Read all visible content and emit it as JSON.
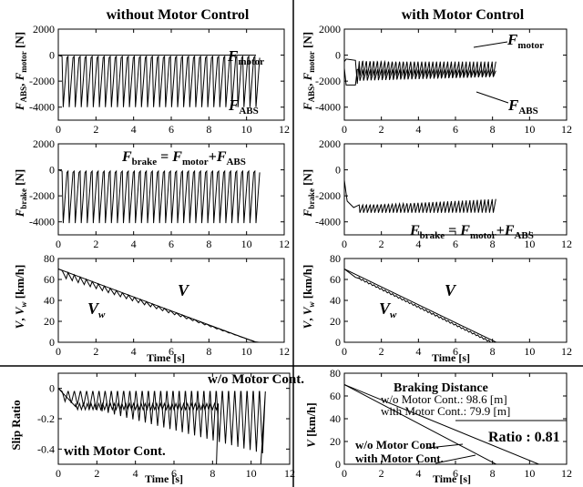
{
  "figure": {
    "left_title": "without Motor Control",
    "right_title": "with Motor Control"
  },
  "chart_data": [
    {
      "id": "p1",
      "type": "line",
      "ylabel": "F_ABS, F_motor [N]",
      "xlim": [
        0,
        12
      ],
      "ylim": [
        -5000,
        2000
      ],
      "xticks": [
        0,
        2,
        4,
        6,
        8,
        10,
        12
      ],
      "yticks": [
        -4000,
        -2000,
        0,
        2000
      ],
      "series": [
        {
          "name": "F_motor",
          "x": [
            0,
            10.5
          ],
          "y": [
            0,
            0
          ]
        },
        {
          "name": "F_ABS",
          "x": [
            0,
            0.2,
            10.5
          ],
          "y": [
            0,
            -100,
            -4200
          ]
        }
      ],
      "annotations": [
        "F_motor",
        "F_ABS"
      ]
    },
    {
      "id": "p2",
      "type": "line",
      "xlim": [
        0,
        12
      ],
      "ylim": [
        -5000,
        2000
      ],
      "xticks": [
        0,
        2,
        4,
        6,
        8,
        10,
        12
      ],
      "yticks": [
        -4000,
        -2000,
        0,
        2000
      ],
      "series": [
        {
          "name": "F_motor",
          "x": [
            0,
            0.6,
            0.8,
            8.2
          ],
          "y": [
            -500,
            -400,
            -600,
            -900
          ]
        },
        {
          "name": "F_ABS",
          "x": [
            0,
            0.6,
            0.8,
            8.2
          ],
          "y": [
            -2000,
            -2300,
            -1100,
            -1800
          ]
        }
      ],
      "annotations": [
        "F_motor",
        "F_ABS"
      ]
    },
    {
      "id": "p3",
      "type": "line",
      "ylabel": "F_brake [N]",
      "xlim": [
        0,
        12
      ],
      "ylim": [
        -5000,
        2000
      ],
      "xticks": [
        0,
        2,
        4,
        6,
        8,
        10,
        12
      ],
      "yticks": [
        -4000,
        -2000,
        0,
        2000
      ],
      "series": [
        {
          "name": "F_brake",
          "x": [
            0,
            0.2,
            10.5
          ],
          "y": [
            0,
            -100,
            -4200
          ]
        }
      ],
      "annotations": [
        "F_brake = F_motor+F_ABS"
      ]
    },
    {
      "id": "p4",
      "type": "line",
      "ylabel": "F_brake [N]",
      "xlim": [
        0,
        12
      ],
      "ylim": [
        -5000,
        2000
      ],
      "xticks": [
        0,
        2,
        4,
        6,
        8,
        10,
        12
      ],
      "yticks": [
        -4000,
        -2000,
        0,
        2000
      ],
      "series": [
        {
          "name": "F_brake",
          "x": [
            0,
            0.5,
            0.8,
            8.2
          ],
          "y": [
            -1000,
            -2800,
            -3000,
            -2000
          ]
        }
      ],
      "annotations": [
        "F_brake = F_motor+F_ABS"
      ]
    },
    {
      "id": "p5",
      "type": "line",
      "ylabel": "V, V_w [km/h]",
      "xlabel": "Time [s]",
      "xlim": [
        0,
        12
      ],
      "ylim": [
        0,
        80
      ],
      "xticks": [
        0,
        2,
        4,
        6,
        8,
        10,
        12
      ],
      "yticks": [
        0,
        20,
        40,
        60,
        80
      ],
      "series": [
        {
          "name": "V",
          "x": [
            0,
            10.5
          ],
          "y": [
            70,
            0
          ]
        },
        {
          "name": "V_w",
          "x": [
            0,
            10.5
          ],
          "y": [
            70,
            0
          ]
        }
      ],
      "annotations": [
        "V",
        "V_w"
      ]
    },
    {
      "id": "p6",
      "type": "line",
      "ylabel": "V, V_w [km/h]",
      "xlabel": "Time [s]",
      "xlim": [
        0,
        12
      ],
      "ylim": [
        0,
        80
      ],
      "xticks": [
        0,
        2,
        4,
        6,
        8,
        10,
        12
      ],
      "yticks": [
        0,
        20,
        40,
        60,
        80
      ],
      "series": [
        {
          "name": "V",
          "x": [
            0,
            8.2
          ],
          "y": [
            70,
            0
          ]
        },
        {
          "name": "V_w",
          "x": [
            0,
            0.7,
            8.2
          ],
          "y": [
            70,
            60,
            0
          ]
        }
      ],
      "annotations": [
        "V",
        "V_w"
      ]
    },
    {
      "id": "p7",
      "type": "line",
      "ylabel": "Slip Ratio",
      "xlabel": "Time [s]",
      "xlim": [
        0,
        12
      ],
      "ylim": [
        -0.5,
        0.1
      ],
      "xticks": [
        0,
        2,
        4,
        6,
        8,
        10,
        12
      ],
      "yticks": [
        -0.4,
        -0.2,
        0
      ],
      "series": [
        {
          "name": "w/o Motor Cont.",
          "x": [
            0,
            10.5
          ],
          "y": [
            0,
            -0.48
          ]
        },
        {
          "name": "with Motor Cont.",
          "x": [
            0,
            0.6,
            1,
            8.2
          ],
          "y": [
            0,
            -0.08,
            -0.12,
            -0.48
          ]
        }
      ],
      "annotations": [
        "w/o Motor Cont.",
        "with Motor Cont."
      ]
    },
    {
      "id": "p8",
      "type": "line",
      "ylabel": "V [km/h]",
      "xlabel": "Time [s]",
      "xlim": [
        0,
        12
      ],
      "ylim": [
        0,
        80
      ],
      "xticks": [
        0,
        2,
        4,
        6,
        8,
        10,
        12
      ],
      "yticks": [
        0,
        20,
        40,
        60,
        80
      ],
      "series": [
        {
          "name": "w/o Motor Cont.",
          "x": [
            0,
            10.5
          ],
          "y": [
            70,
            0
          ]
        },
        {
          "name": "with Motor Cont.",
          "x": [
            0,
            8.2
          ],
          "y": [
            70,
            0
          ]
        }
      ],
      "annotations": [
        "w/o Motor Cont.",
        "with Motor Cont."
      ],
      "info": {
        "title": "Braking Distance",
        "row1": "w/o  Motor Cont.: 98.6 [m]",
        "row2": "with  Motor Cont.: 79.9 [m]",
        "ratio": "Ratio : 0.81"
      }
    }
  ]
}
